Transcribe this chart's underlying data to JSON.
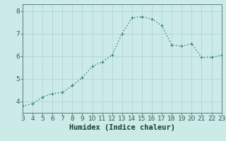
{
  "x": [
    3,
    4,
    5,
    6,
    7,
    8,
    9,
    10,
    11,
    12,
    13,
    14,
    15,
    16,
    17,
    18,
    19,
    20,
    21,
    22,
    23
  ],
  "y": [
    3.8,
    3.9,
    4.2,
    4.35,
    4.4,
    4.7,
    5.05,
    5.55,
    5.75,
    6.05,
    7.0,
    7.7,
    7.75,
    7.65,
    7.35,
    6.5,
    6.45,
    6.55,
    5.95,
    5.95,
    6.05
  ],
  "xlabel": "Humidex (Indice chaleur)",
  "xlim": [
    3,
    23
  ],
  "ylim": [
    3.5,
    8.3
  ],
  "yticks": [
    4,
    5,
    6,
    7,
    8
  ],
  "xticks": [
    3,
    4,
    5,
    6,
    7,
    8,
    9,
    10,
    11,
    12,
    13,
    14,
    15,
    16,
    17,
    18,
    19,
    20,
    21,
    22,
    23
  ],
  "line_color": "#2e7d6e",
  "marker": "+",
  "marker_size": 3.5,
  "bg_color": "#cceae7",
  "grid_color": "#aad4d0",
  "tick_color": "#2a5c52",
  "label_color": "#1a3c34",
  "line_width": 1.0,
  "font_size_ticks": 6.5,
  "font_size_xlabel": 7.5
}
